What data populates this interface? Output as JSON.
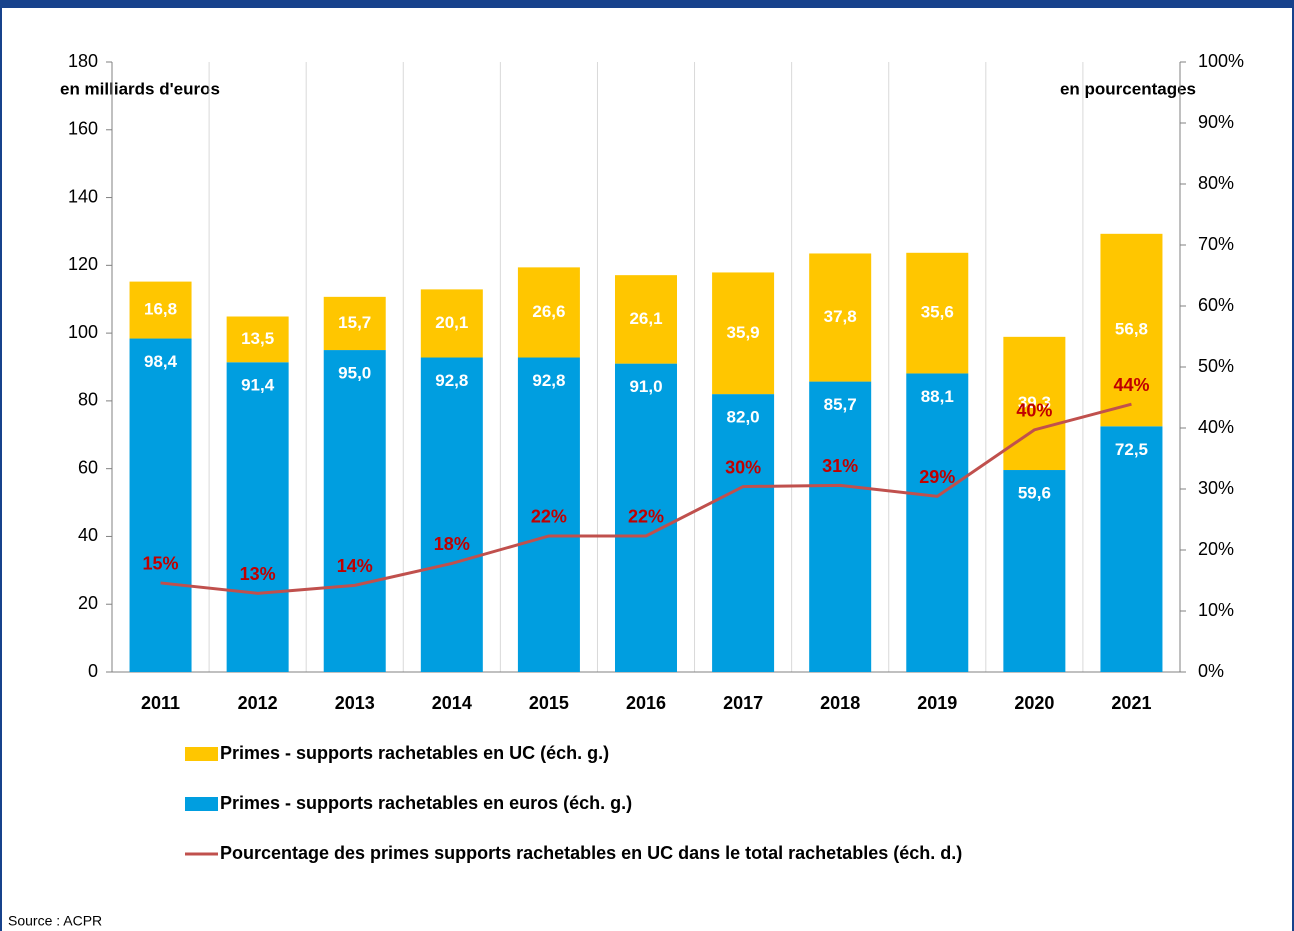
{
  "chart_data": {
    "type": "bar",
    "y_label": "en milliards d'euros",
    "y2_label": "en pourcentages",
    "source": "Source : ACPR",
    "categories": [
      "2011",
      "2012",
      "2013",
      "2014",
      "2015",
      "2016",
      "2017",
      "2018",
      "2019",
      "2020",
      "2021"
    ],
    "series": [
      {
        "name": "Primes - supports rachetables en UC (éch. g.)",
        "color": "#ffc600",
        "type": "bar",
        "values": [
          16.8,
          13.5,
          15.7,
          20.1,
          26.6,
          26.1,
          35.9,
          37.8,
          35.6,
          39.3,
          56.8
        ],
        "value_labels": [
          "16,8",
          "13,5",
          "15,7",
          "20,1",
          "26,6",
          "26,1",
          "35,9",
          "37,8",
          "35,6",
          "39,3",
          "56,8"
        ]
      },
      {
        "name": "Primes - supports rachetables en euros (éch. g.)",
        "color": "#009ee0",
        "type": "bar",
        "values": [
          98.4,
          91.4,
          95.0,
          92.8,
          92.8,
          91.0,
          82.0,
          85.7,
          88.1,
          59.6,
          72.5
        ],
        "value_labels": [
          "98,4",
          "91,4",
          "95,0",
          "92,8",
          "92,8",
          "91,0",
          "82,0",
          "85,7",
          "88,1",
          "59,6",
          "72,5"
        ]
      },
      {
        "name": "Pourcentage des primes supports rachetables en UC dans le total rachetables (éch. d.)",
        "color": "#c0504d",
        "type": "line",
        "axis": "y2",
        "values": [
          14.6,
          12.9,
          14.2,
          17.8,
          22.3,
          22.3,
          30.4,
          30.6,
          28.8,
          39.7,
          43.9
        ],
        "value_labels": [
          "15%",
          "13%",
          "14%",
          "18%",
          "22%",
          "22%",
          "30%",
          "31%",
          "29%",
          "40%",
          "44%"
        ]
      }
    ],
    "ylim": [
      0,
      180
    ],
    "yticks": [
      0,
      20,
      40,
      60,
      80,
      100,
      120,
      140,
      160,
      180
    ],
    "y2lim": [
      0,
      100
    ],
    "y2ticks": [
      {
        "value": 0,
        "label": "0%"
      },
      {
        "value": 10,
        "label": "10%"
      },
      {
        "value": 20,
        "label": "20%"
      },
      {
        "value": 30,
        "label": "30%"
      },
      {
        "value": 40,
        "label": "40%"
      },
      {
        "value": 50,
        "label": "50%"
      },
      {
        "value": 60,
        "label": "60%"
      },
      {
        "value": 70,
        "label": "70%"
      },
      {
        "value": 80,
        "label": "80%"
      },
      {
        "value": 90,
        "label": "90%"
      },
      {
        "value": 100,
        "label": "100%"
      }
    ],
    "grid": true
  }
}
